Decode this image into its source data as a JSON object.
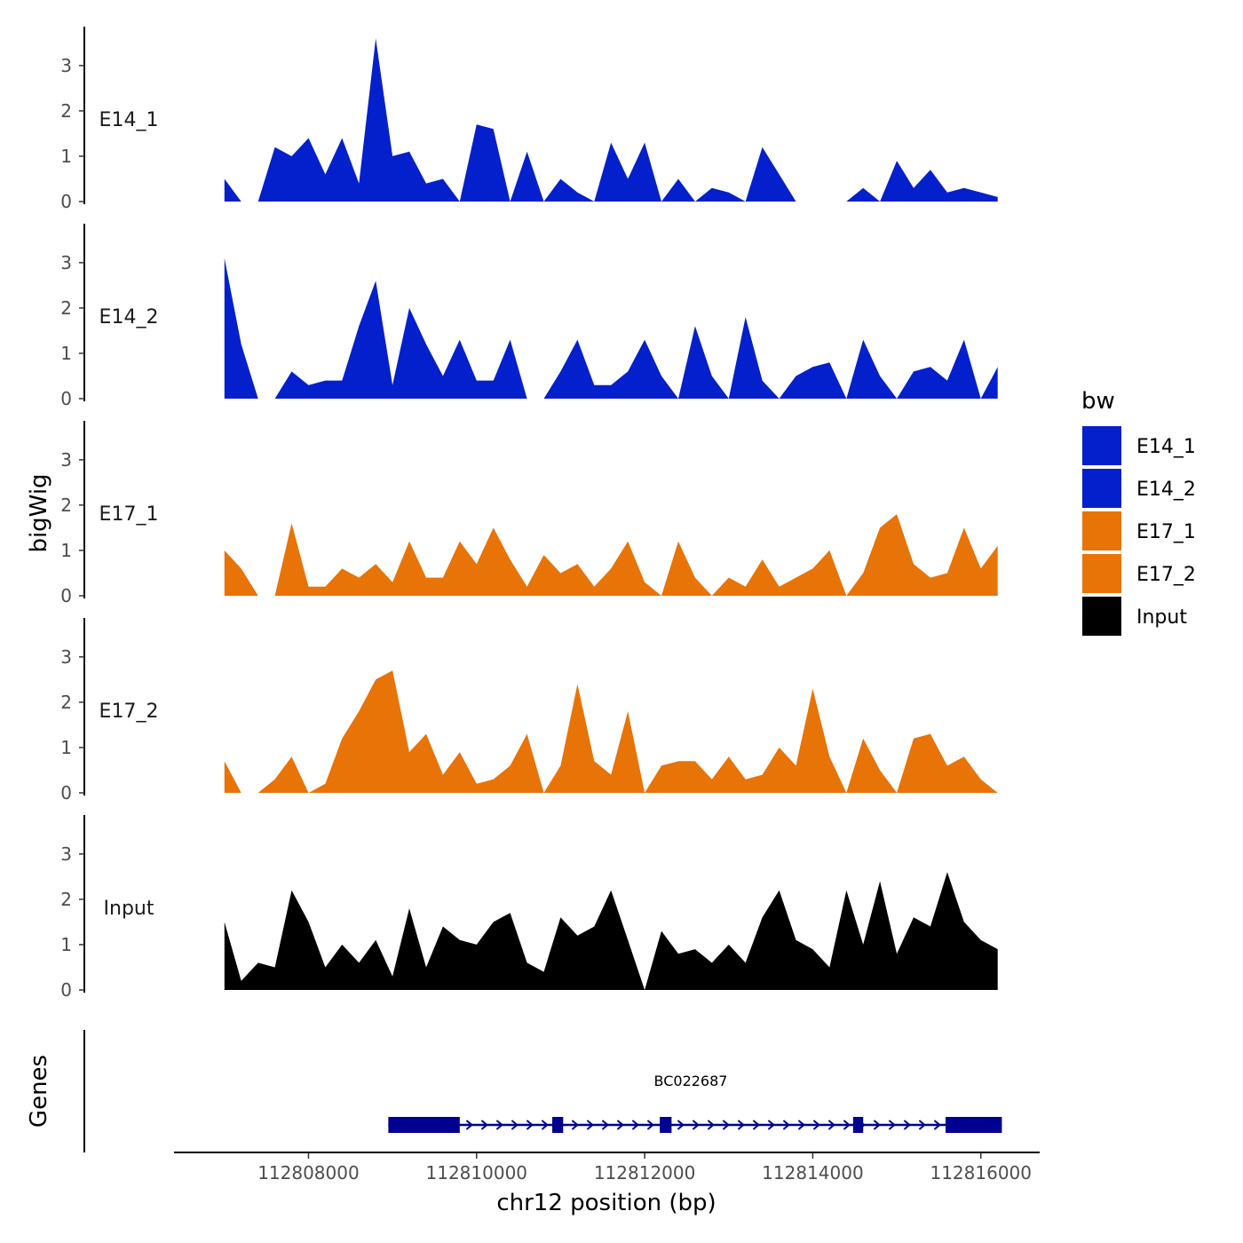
{
  "chart_data": {
    "type": "area",
    "title": "",
    "xlabel": "chr12 position (bp)",
    "ylabel": "bigWig",
    "xlim": [
      112806400,
      112816700
    ],
    "ylim": [
      0,
      3.8
    ],
    "y_ticks": [
      "0",
      "1",
      "2",
      "3"
    ],
    "x_ticks": [
      {
        "value": 112808000,
        "label": "112808000"
      },
      {
        "value": 112810000,
        "label": "112810000"
      },
      {
        "value": 112812000,
        "label": "112812000"
      },
      {
        "value": 112814000,
        "label": "112814000"
      },
      {
        "value": 112816000,
        "label": "112816000"
      }
    ],
    "x_positions": [
      112807000,
      112807200,
      112807400,
      112807600,
      112807800,
      112808000,
      112808200,
      112808400,
      112808600,
      112808800,
      112809000,
      112809200,
      112809400,
      112809600,
      112809800,
      112810000,
      112810200,
      112810400,
      112810600,
      112810800,
      112811000,
      112811200,
      112811400,
      112811600,
      112811800,
      112812000,
      112812200,
      112812400,
      112812600,
      112812800,
      112813000,
      112813200,
      112813400,
      112813600,
      112813800,
      112814000,
      112814200,
      112814400,
      112814600,
      112814800,
      112815000,
      112815200,
      112815400,
      112815600,
      112815800,
      112816000,
      112816200
    ],
    "series": [
      {
        "name": "E14_1",
        "color": "#0320CC",
        "values": [
          0.5,
          0.0,
          0.0,
          1.2,
          1.0,
          1.4,
          0.6,
          1.4,
          0.4,
          3.6,
          1.0,
          1.1,
          0.4,
          0.5,
          0.0,
          1.7,
          1.6,
          0.0,
          1.1,
          0.0,
          0.5,
          0.2,
          0.0,
          1.3,
          0.5,
          1.3,
          0.0,
          0.5,
          0.0,
          0.3,
          0.2,
          0.0,
          1.2,
          0.6,
          0.0,
          0.0,
          0.0,
          0.0,
          0.3,
          0.0,
          0.9,
          0.3,
          0.7,
          0.2,
          0.3,
          0.2,
          0.1
        ]
      },
      {
        "name": "E14_2",
        "color": "#0320CC",
        "values": [
          3.1,
          1.2,
          0.0,
          0.0,
          0.6,
          0.3,
          0.4,
          0.4,
          1.6,
          2.6,
          0.3,
          2.0,
          1.2,
          0.5,
          1.3,
          0.4,
          0.4,
          1.3,
          0.0,
          0.0,
          0.6,
          1.3,
          0.3,
          0.3,
          0.6,
          1.3,
          0.5,
          0.0,
          1.6,
          0.5,
          0.0,
          1.8,
          0.4,
          0.0,
          0.5,
          0.7,
          0.8,
          0.0,
          1.3,
          0.5,
          0.0,
          0.6,
          0.7,
          0.4,
          1.3,
          0.0,
          0.7
        ]
      },
      {
        "name": "E17_1",
        "color": "#E87306",
        "values": [
          1.0,
          0.6,
          0.0,
          0.0,
          1.6,
          0.2,
          0.2,
          0.6,
          0.4,
          0.7,
          0.3,
          1.2,
          0.4,
          0.4,
          1.2,
          0.7,
          1.5,
          0.8,
          0.2,
          0.9,
          0.5,
          0.7,
          0.2,
          0.6,
          1.2,
          0.3,
          0.0,
          1.2,
          0.4,
          0.0,
          0.4,
          0.2,
          0.8,
          0.2,
          0.4,
          0.6,
          1.0,
          0.0,
          0.5,
          1.5,
          1.8,
          0.7,
          0.4,
          0.5,
          1.5,
          0.6,
          1.1
        ]
      },
      {
        "name": "E17_2",
        "color": "#E87306",
        "values": [
          0.7,
          0.0,
          0.0,
          0.3,
          0.8,
          0.0,
          0.2,
          1.2,
          1.8,
          2.5,
          2.7,
          0.9,
          1.3,
          0.4,
          0.9,
          0.2,
          0.3,
          0.6,
          1.3,
          0.0,
          0.6,
          2.4,
          0.7,
          0.4,
          1.8,
          0.0,
          0.6,
          0.7,
          0.7,
          0.3,
          0.8,
          0.3,
          0.4,
          1.0,
          0.6,
          2.3,
          0.8,
          0.0,
          1.2,
          0.5,
          0.0,
          1.2,
          1.3,
          0.6,
          0.8,
          0.3,
          0.0
        ]
      },
      {
        "name": "Input",
        "color": "#000000",
        "values": [
          1.5,
          0.2,
          0.6,
          0.5,
          2.2,
          1.5,
          0.5,
          1.0,
          0.6,
          1.1,
          0.3,
          1.8,
          0.5,
          1.4,
          1.1,
          1.0,
          1.5,
          1.7,
          0.6,
          0.4,
          1.6,
          1.2,
          1.4,
          2.2,
          1.1,
          0.0,
          1.3,
          0.8,
          0.9,
          0.6,
          1.0,
          0.6,
          1.6,
          2.2,
          1.1,
          0.9,
          0.5,
          2.2,
          1.0,
          2.4,
          0.8,
          1.6,
          1.4,
          2.6,
          1.5,
          1.1,
          0.9
        ]
      }
    ],
    "legend": {
      "title": "bw",
      "position": "right",
      "entries": [
        "E14_1",
        "E14_2",
        "E17_1",
        "E17_2",
        "Input"
      ]
    },
    "genes_track": {
      "label": "Genes",
      "gene_name": "BC022687",
      "strand": "+",
      "color": "#000091",
      "start": 112808950,
      "end": 112816250,
      "exons": [
        [
          112808950,
          112809800
        ],
        [
          112810900,
          112811030
        ],
        [
          112812180,
          112812320
        ],
        [
          112814480,
          112814600
        ],
        [
          112815580,
          112816250
        ]
      ]
    }
  }
}
